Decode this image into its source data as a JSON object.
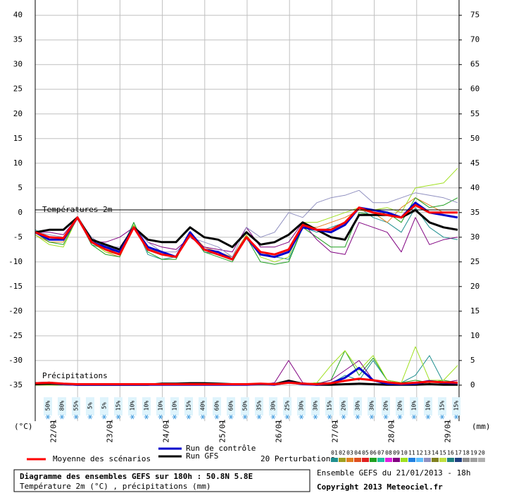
{
  "chart_data": {
    "type": "line",
    "annotations": {
      "temperature": "Températures 2m",
      "precipitation": "Précipitations",
      "left_unit": "(°C)",
      "right_unit": "(mm)"
    },
    "x": [
      0,
      6,
      12,
      18,
      24,
      30,
      36,
      42,
      48,
      54,
      60,
      66,
      72,
      78,
      84,
      90,
      96,
      102,
      108,
      114,
      120,
      126,
      132,
      138,
      144,
      150,
      156,
      162,
      168,
      174,
      180
    ],
    "xlim": [
      0,
      180
    ],
    "xticks": [
      {
        "value": 8,
        "label": "22/01"
      },
      {
        "value": 32,
        "label": "23/01"
      },
      {
        "value": 56,
        "label": "24/01"
      },
      {
        "value": 80,
        "label": "25/01"
      },
      {
        "value": 104,
        "label": "26/01"
      },
      {
        "value": 128,
        "label": "27/01"
      },
      {
        "value": 152,
        "label": "28/01"
      },
      {
        "value": 176,
        "label": "29/01"
      }
    ],
    "ylim": [
      -42.3,
      43.1
    ],
    "yticks": [
      40,
      35,
      30,
      25,
      20,
      15,
      10,
      5,
      0,
      -5,
      -10,
      -15,
      -20,
      -25,
      -30,
      -35
    ],
    "y2lim": [
      -7.3,
      78.1
    ],
    "y2ticks": [
      75,
      70,
      65,
      60,
      55,
      50,
      45,
      40,
      35,
      30,
      25,
      20,
      15,
      10,
      5,
      0
    ],
    "grid": true,
    "precip_probability": [
      null,
      "50%",
      "80%",
      "55%",
      "5%",
      "5%",
      "15%",
      "10%",
      "10%",
      "10%",
      "10%",
      "15%",
      "40%",
      "60%",
      "60%",
      "50%",
      "35%",
      "30%",
      "25%",
      "30%",
      "30%",
      "15%",
      "20%",
      "30%",
      "30%",
      "20%",
      "20%",
      "10%",
      "10%",
      "15%",
      "15%"
    ],
    "series": [
      {
        "name": "01",
        "color": "#209090",
        "width": 1,
        "values": [
          -3.5,
          -5,
          -5.5,
          -1,
          -6.5,
          -7.5,
          -8,
          -2,
          -8.5,
          -9.5,
          -9,
          -4,
          -8,
          -8.5,
          -9,
          -5,
          -8,
          -9,
          -9.5,
          -3,
          -4,
          -3,
          -2,
          1,
          -1,
          -2,
          -4,
          1,
          -3,
          -5,
          -5.5
        ]
      },
      {
        "name": "03",
        "color": "#e08020",
        "width": 1,
        "values": [
          -4.5,
          -6,
          -6,
          -1,
          -6,
          -8,
          -9,
          -3,
          -7.5,
          -8.5,
          -9,
          -4,
          -7,
          -8,
          -9,
          -4.5,
          -8.5,
          -9,
          -8,
          -3,
          -3,
          -2,
          -1,
          0.5,
          0,
          -2,
          1,
          3,
          1.5,
          0,
          0
        ]
      },
      {
        "name": "06",
        "color": "#20a020",
        "width": 1,
        "values": [
          -4,
          -6,
          -6.5,
          -1,
          -6.5,
          -8.5,
          -9,
          -2,
          -8,
          -9.5,
          -9.5,
          -4,
          -8,
          -9,
          -10,
          -5,
          -10,
          -10.5,
          -10,
          -3,
          -5,
          -7,
          -7,
          0,
          -0.5,
          0,
          -2,
          3,
          1,
          1.5,
          3
        ]
      },
      {
        "name": "09",
        "color": "#800080",
        "width": 1,
        "values": [
          -4,
          -4,
          -4.5,
          -1,
          -6,
          -6,
          -5,
          -3,
          -6,
          -7,
          -7.5,
          -5,
          -7,
          -7.5,
          -8,
          -3,
          -7,
          -7,
          -6,
          -2,
          -5.5,
          -8,
          -8.5,
          -2,
          -3,
          -4,
          -8,
          -1,
          -6.5,
          -5.5,
          -5
        ]
      },
      {
        "name": "10",
        "color": "#a0e020",
        "width": 1,
        "values": [
          -4.5,
          -6.5,
          -7,
          -1,
          -6,
          -8,
          -8.5,
          -2.5,
          -7,
          -8.5,
          -9,
          -4,
          -7.5,
          -8.5,
          -9.5,
          -4.5,
          -9,
          -10,
          -9,
          -2,
          -2,
          -1,
          0,
          1,
          0.5,
          1,
          0,
          5,
          5.5,
          6,
          9
        ]
      },
      {
        "name": "13",
        "color": "#9090c0",
        "width": 1,
        "values": [
          -4,
          -4.5,
          -5,
          -1,
          -5,
          -7,
          -7,
          -3,
          -6,
          -8,
          -8,
          -5,
          -6,
          -7,
          -9,
          -3,
          -5,
          -4,
          0,
          -1,
          2,
          3,
          3.5,
          4.5,
          2,
          2,
          3,
          4,
          3.5,
          3,
          2
        ]
      },
      {
        "name": "Run GFS",
        "color": "#000000",
        "width": 3,
        "values": [
          -4,
          -3.5,
          -3.5,
          -1,
          -5.5,
          -6.5,
          -7.5,
          -3,
          -5.5,
          -6,
          -6,
          -3,
          -5,
          -5.5,
          -7,
          -4,
          -6.5,
          -6,
          -4.5,
          -2,
          -3.5,
          -5,
          -5.5,
          -0.5,
          -0.5,
          -0.5,
          -1,
          0.5,
          -2,
          -3,
          -3.5
        ]
      },
      {
        "name": "Run de contrôle",
        "color": "#0000cc",
        "width": 3,
        "values": [
          -4,
          -5.5,
          -5.5,
          -1,
          -6,
          -7,
          -8,
          -3,
          -7,
          -8,
          -9,
          -4,
          -7.5,
          -8,
          -9.5,
          -5,
          -8.5,
          -9,
          -8,
          -3,
          -3.5,
          -4,
          -2.5,
          1,
          0.5,
          0,
          -1,
          2,
          0,
          -0.5,
          -1
        ]
      },
      {
        "name": "Moyenne des scénarios",
        "color": "#ff0000",
        "width": 3,
        "values": [
          -4,
          -5,
          -5.2,
          -1,
          -6,
          -7.5,
          -8.5,
          -3,
          -7.5,
          -8.5,
          -9,
          -4.5,
          -7.5,
          -8.5,
          -9.5,
          -5,
          -8,
          -8.5,
          -7.5,
          -2.5,
          -3.5,
          -3.5,
          -2,
          1,
          0,
          -0.5,
          -1,
          1.5,
          0,
          0,
          0
        ]
      },
      {
        "name": "01",
        "color": "#209090",
        "width": 1,
        "axis": "y2",
        "values": [
          0,
          0,
          0,
          0,
          0,
          0,
          0,
          0,
          0,
          0,
          0,
          0,
          0,
          0,
          0,
          0,
          0,
          0,
          1,
          0.2,
          0.5,
          0.3,
          2,
          1,
          5,
          1,
          0.5,
          2,
          6,
          0.5,
          0.5
        ]
      },
      {
        "name": "06",
        "color": "#20a020",
        "width": 1,
        "axis": "y2",
        "values": [
          0,
          0,
          0,
          0,
          0,
          0,
          0,
          0,
          0,
          0,
          0,
          0,
          0,
          0,
          0,
          0,
          0,
          0,
          0.5,
          0.2,
          0.3,
          1,
          7,
          2,
          5.5,
          1,
          0.5,
          1,
          0.5,
          1,
          0.5
        ]
      },
      {
        "name": "09",
        "color": "#800080",
        "width": 1,
        "axis": "y2",
        "values": [
          0,
          0,
          0,
          0,
          0,
          0,
          0,
          0,
          0,
          0,
          0,
          0,
          0,
          0,
          0,
          0,
          0.1,
          0.5,
          5,
          0.5,
          0.2,
          1,
          3,
          5,
          1,
          0.5,
          0.2,
          0.5,
          1,
          0.5,
          1
        ]
      },
      {
        "name": "10",
        "color": "#a0e020",
        "width": 1,
        "axis": "y2",
        "values": [
          0,
          0,
          0,
          0,
          0,
          0,
          0,
          0,
          0,
          0,
          0,
          0,
          0,
          0,
          0,
          0,
          0,
          0,
          0.5,
          0.2,
          0.5,
          4,
          7,
          3,
          6,
          1,
          0.5,
          7.8,
          1,
          1,
          4
        ]
      },
      {
        "name": "Run GFS",
        "color": "#000000",
        "width": 3,
        "axis": "y2",
        "values": [
          0.2,
          0.3,
          0.2,
          0.1,
          0.1,
          0.1,
          0.1,
          0.1,
          0.1,
          0.3,
          0.3,
          0.4,
          0.4,
          0.3,
          0.2,
          0.2,
          0.2,
          0.2,
          0.9,
          0.3,
          0.1,
          0.1,
          0.2,
          0.3,
          0.2,
          0.1,
          0.1,
          0.1,
          0.2,
          0.1,
          0.1
        ]
      },
      {
        "name": "Run de contrôle",
        "color": "#0000cc",
        "width": 3,
        "axis": "y2",
        "values": [
          0.4,
          0.5,
          0.2,
          0.1,
          0.1,
          0.1,
          0.1,
          0.1,
          0.1,
          0.1,
          0.1,
          0.1,
          0.1,
          0.1,
          0.1,
          0.1,
          0.2,
          0.1,
          0.6,
          0.2,
          0.1,
          0.4,
          1.5,
          3.5,
          1,
          0.3,
          0.2,
          0.3,
          0.8,
          0.5,
          0.4
        ]
      },
      {
        "name": "Moyenne des scénarios",
        "color": "#ff0000",
        "width": 3,
        "axis": "y2",
        "values": [
          0.4,
          0.5,
          0.3,
          0.2,
          0.2,
          0.2,
          0.2,
          0.2,
          0.2,
          0.2,
          0.2,
          0.2,
          0.2,
          0.2,
          0.2,
          0.2,
          0.3,
          0.2,
          0.5,
          0.3,
          0.2,
          0.4,
          0.9,
          1.3,
          1,
          0.6,
          0.3,
          0.5,
          0.7,
          0.6,
          0.5
        ]
      }
    ],
    "legend": {
      "mean": 8,
      "control": 7,
      "gfs": 6,
      "perturbations_title": "20 Perturbations"
    },
    "perturbation_legend": [
      {
        "label": "01",
        "color": "#209090"
      },
      {
        "label": "02",
        "color": "#a0a020"
      },
      {
        "label": "03",
        "color": "#e08020"
      },
      {
        "label": "04",
        "color": "#e05020"
      },
      {
        "label": "05",
        "color": "#e02020"
      },
      {
        "label": "06",
        "color": "#20a020"
      },
      {
        "label": "07",
        "color": "#20c0a0"
      },
      {
        "label": "08",
        "color": "#e020e0"
      },
      {
        "label": "09",
        "color": "#800080"
      },
      {
        "label": "10",
        "color": "#a0e020"
      },
      {
        "label": "11",
        "color": "#2080e0"
      },
      {
        "label": "12",
        "color": "#60c0ff"
      },
      {
        "label": "13",
        "color": "#9090c0"
      },
      {
        "label": "14",
        "color": "#808020"
      },
      {
        "label": "15",
        "color": "#c0e040"
      },
      {
        "label": "16",
        "color": "#208080"
      },
      {
        "label": "17",
        "color": "#204080"
      },
      {
        "label": "18",
        "color": "#909090"
      },
      {
        "label": "19",
        "color": "#a0a0a0"
      },
      {
        "label": "20",
        "color": "#b0b0b0"
      }
    ],
    "footer": {
      "title": "Diagramme des ensembles GEFS sur 180h : 50.8N 5.8E",
      "subtitle": "Température 2m (°C) , précipitations (mm)",
      "run": "Ensemble GEFS du 21/01/2013 - 18h",
      "copyright": "Copyright 2013 Meteociel.fr"
    }
  }
}
